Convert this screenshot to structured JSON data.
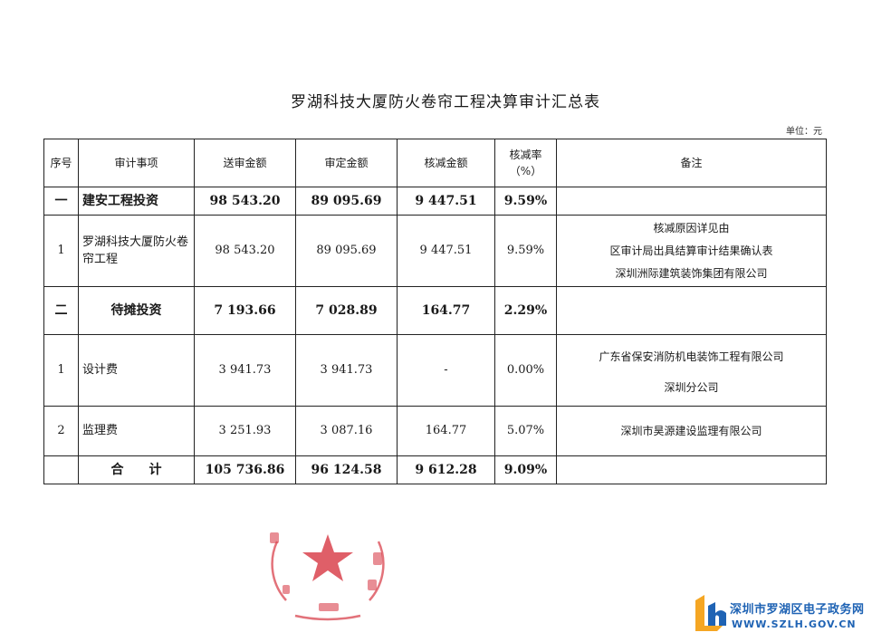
{
  "document": {
    "title": "罗湖科技大厦防火卷帘工程决算审计汇总表",
    "unit": "单位：元"
  },
  "table": {
    "headers": {
      "seq": "序号",
      "item": "审计事项",
      "submitted": "送审金额",
      "approved": "审定金额",
      "reduction": "核减金额",
      "rate_line1": "核减率",
      "rate_line2": "（%）",
      "remarks": "备注"
    },
    "rows": [
      {
        "seq": "一",
        "item": "建安工程投资",
        "submitted": "98 543.20",
        "approved": "89 095.69",
        "reduction": "9 447.51",
        "rate": "9.59%",
        "remarks": ""
      },
      {
        "seq": "1",
        "item": "罗湖科技大厦防火卷帘工程",
        "submitted": "98 543.20",
        "approved": "89 095.69",
        "reduction": "9 447.51",
        "rate": "9.59%",
        "remarks_lines": [
          "核减原因详见由",
          "区审计局出具结算审计结果确认表",
          "深圳洲际建筑装饰集团有限公司"
        ]
      },
      {
        "seq": "二",
        "item": "待摊投资",
        "submitted": "7 193.66",
        "approved": "7 028.89",
        "reduction": "164.77",
        "rate": "2.29%",
        "remarks": ""
      },
      {
        "seq": "1",
        "item": "设计费",
        "submitted": "3 941.73",
        "approved": "3 941.73",
        "reduction": "-",
        "rate": "0.00%",
        "remarks_lines": [
          "广东省保安消防机电装饰工程有限公司",
          "深圳分公司"
        ]
      },
      {
        "seq": "2",
        "item": "监理费",
        "submitted": "3 251.93",
        "approved": "3 087.16",
        "reduction": "164.77",
        "rate": "5.07%",
        "remarks_lines": [
          "深圳市昊源建设监理有限公司"
        ]
      },
      {
        "seq": "",
        "item": "合　　计",
        "submitted": "105 736.86",
        "approved": "96 124.58",
        "reduction": "9 612.28",
        "rate": "9.09%",
        "remarks": ""
      }
    ]
  },
  "watermark": {
    "site_cn": "深圳市罗湖区电子政务网",
    "site_en": "WWW.SZLH.GOV.CN",
    "brand_color": "#1f63b4",
    "accent_color": "#f5a623"
  },
  "seal": {
    "color": "#d9434e"
  }
}
